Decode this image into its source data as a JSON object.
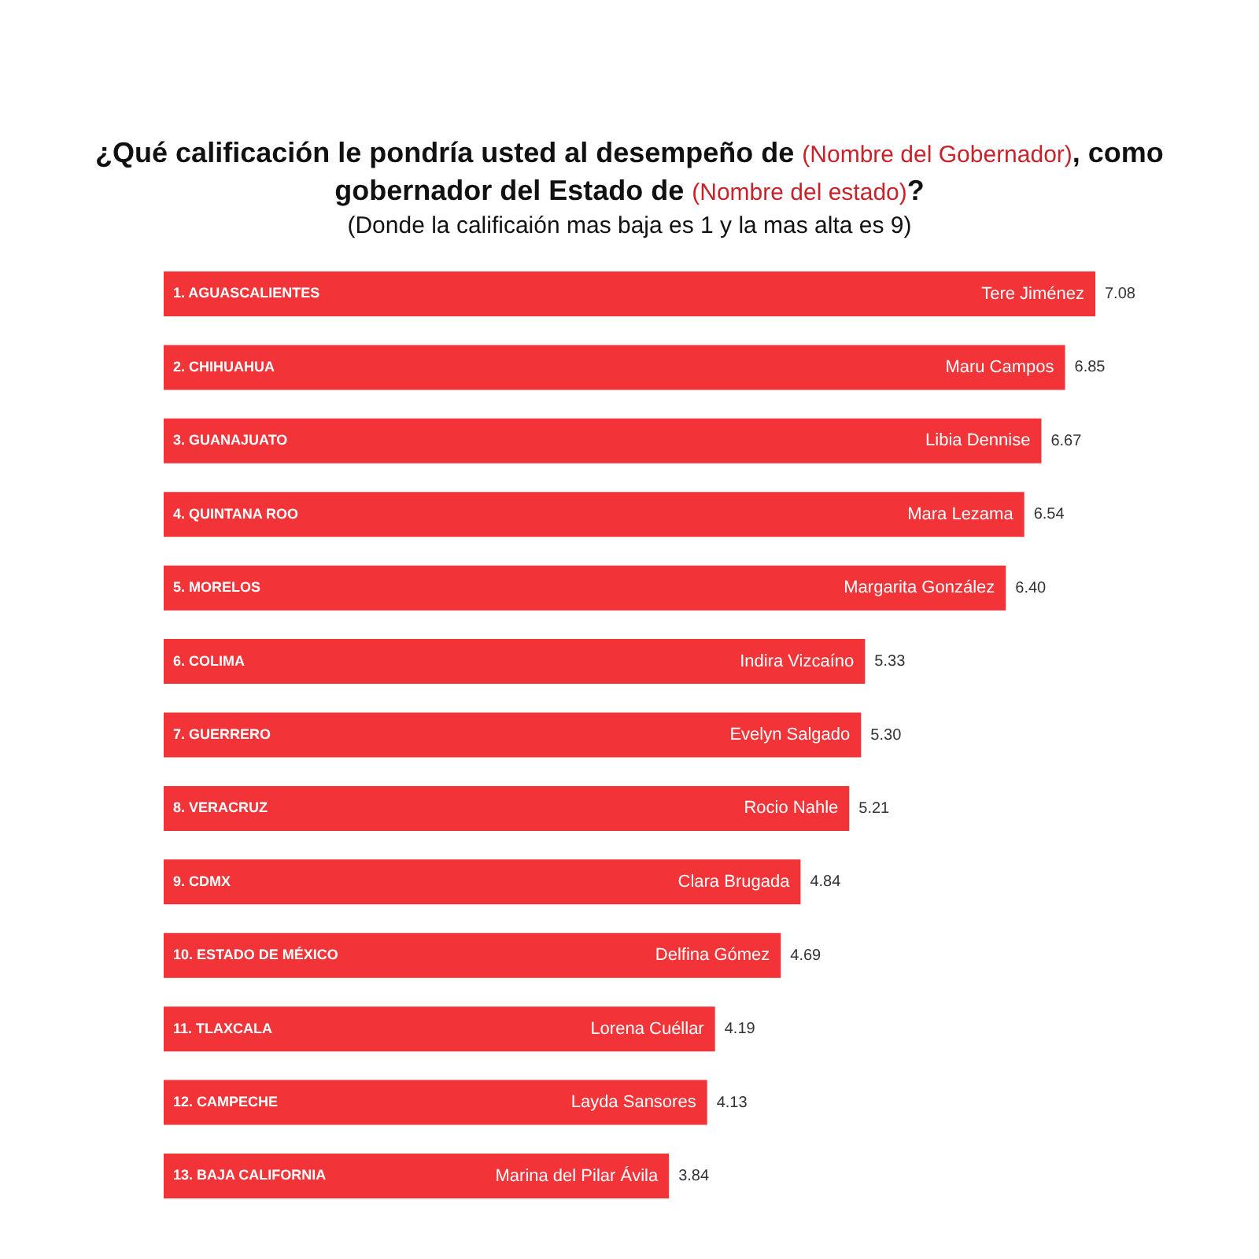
{
  "chart_data": {
    "type": "bar",
    "orientation": "horizontal",
    "title": "¿Qué calificación le pondría usted al desempeño de (Nombre del Gobernador), como gobernador del Estado de (Nombre del estado)?",
    "subtitle": "(Donde la calificaión mas baja es 1 y la mas alta es 9)",
    "categories": [
      "1. AGUASCALIENTES",
      "2. CHIHUAHUA",
      "3. GUANAJUATO",
      "4. QUINTANA ROO",
      "5. MORELOS",
      "6. COLIMA",
      "7. GUERRERO",
      "8. VERACRUZ",
      "9. CDMX",
      "10. ESTADO DE MÉXICO",
      "11. TLAXCALA",
      "12. CAMPECHE",
      "13. BAJA CALIFORNIA"
    ],
    "values": [
      7.08,
      6.85,
      6.67,
      6.54,
      6.4,
      5.33,
      5.3,
      5.21,
      4.84,
      4.69,
      4.19,
      4.13,
      3.84
    ],
    "value_labels": [
      "7.08",
      "6.85",
      "6.67",
      "6.54",
      "6.40",
      "5.33",
      "5.30",
      "5.21",
      "4.84",
      "4.69",
      "4.19",
      "4.13",
      "3.84"
    ],
    "color": "#f23338",
    "tick_labels": "y",
    "annotations": [
      {
        "text": "Tere Jiménez",
        "x": 7.08,
        "y": "1. AGUASCALIENTES"
      },
      {
        "text": "Maru Campos",
        "x": 6.85,
        "y": "2. CHIHUAHUA"
      },
      {
        "text": "Libia Dennise",
        "x": 6.67,
        "y": "3. GUANAJUATO"
      },
      {
        "text": "Mara Lezama",
        "x": 6.54,
        "y": "4. QUINTANA ROO"
      },
      {
        "text": "Margarita González",
        "x": 6.4,
        "y": "5. MORELOS"
      },
      {
        "text": "Indira Vizcaíno",
        "x": 5.33,
        "y": "6. COLIMA"
      },
      {
        "text": "Evelyn Salgado",
        "x": 5.3,
        "y": "7. GUERRERO"
      },
      {
        "text": "Rocio Nahle",
        "x": 5.21,
        "y": "8. VERACRUZ"
      },
      {
        "text": "Clara Brugada",
        "x": 4.84,
        "y": "9. CDMX"
      },
      {
        "text": "Delfina Gómez",
        "x": 4.69,
        "y": "10. ESTADO DE MÉXICO"
      },
      {
        "text": "Lorena Cuéllar",
        "x": 4.19,
        "y": "11. TLAXCALA"
      },
      {
        "text": "Layda Sansores",
        "x": 4.13,
        "y": "12. CAMPECHE"
      },
      {
        "text": "Marina del Pilar Ávila",
        "x": 3.84,
        "y": "13. BAJA CALIFORNIA"
      }
    ]
  }
}
